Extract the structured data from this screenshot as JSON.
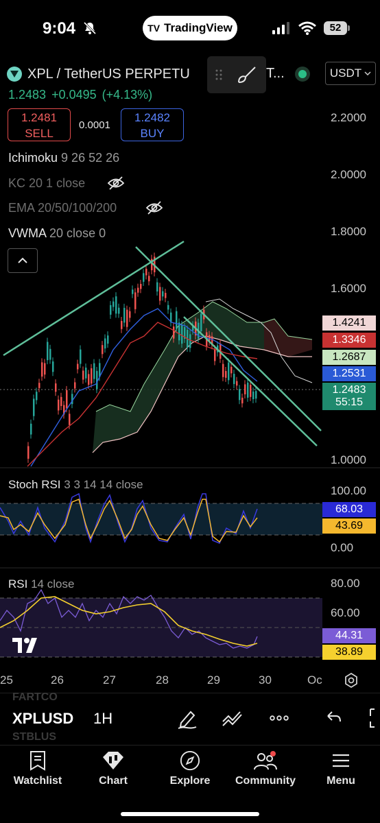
{
  "status_bar": {
    "time": "9:04",
    "battery": "52",
    "app_pill": "TradingView"
  },
  "header": {
    "symbol_title": "XPL / TetherUS PERPETU",
    "symbol_trail": "T...",
    "currency": "USDT",
    "last_price": "1.2483",
    "change": "+0.0495",
    "change_pct": "(+4.13%)"
  },
  "trade": {
    "sell_price": "1.2481",
    "sell_label": "SELL",
    "spread": "0.0001",
    "buy_price": "1.2482",
    "buy_label": "BUY"
  },
  "indicators": [
    {
      "name": "Ichimoku",
      "params": "9 26 52 26"
    },
    {
      "name": "KC",
      "params": "20 1 close"
    },
    {
      "name": "EMA",
      "params": "20/50/100/200"
    },
    {
      "name": "VWMA",
      "params": "20 close 0"
    }
  ],
  "price_axis": [
    "2.2000",
    "2.0000",
    "1.8000",
    "1.6000",
    "1.0000"
  ],
  "price_tags": [
    {
      "value": "1.4241",
      "color": "#f0d6d6",
      "text_color": "#000"
    },
    {
      "value": "1.3346",
      "color": "#c83232",
      "text_color": "#fff"
    },
    {
      "value": "1.2687",
      "color": "#c8e6c0",
      "text_color": "#000"
    },
    {
      "value": "1.2531",
      "color": "#2a5ad6",
      "text_color": "#fff"
    },
    {
      "value": "1.2483",
      "sub": "55:15",
      "color": "#1f8a6e",
      "text_color": "#fff"
    }
  ],
  "stoch_rsi": {
    "name": "Stoch RSI",
    "params": "3 3 14 14 close",
    "axis": [
      "100.00",
      "0.00"
    ],
    "tags": [
      {
        "value": "68.03",
        "color": "#2a2ad6",
        "text_color": "#fff"
      },
      {
        "value": "43.69",
        "color": "#f5b82e",
        "text_color": "#000"
      }
    ]
  },
  "rsi": {
    "name": "RSI",
    "params": "14 close",
    "axis": [
      "80.00",
      "60.00"
    ],
    "tags": [
      {
        "value": "44.31",
        "color": "#7b5cd6",
        "text_color": "#fff"
      },
      {
        "value": "38.89",
        "color": "#f5d02e",
        "text_color": "#000"
      }
    ]
  },
  "time_axis": [
    "25",
    "26",
    "27",
    "28",
    "29",
    "30",
    "Oc"
  ],
  "toolbar": {
    "symbol": "XPLUSD",
    "timeframe": "1H",
    "ghost_above": "FARTCO",
    "ghost_below": "STBLUS"
  },
  "nav": [
    {
      "label": "Watchlist",
      "icon": "watchlist-icon"
    },
    {
      "label": "Chart",
      "icon": "chart-icon"
    },
    {
      "label": "Explore",
      "icon": "compass-icon"
    },
    {
      "label": "Community",
      "icon": "community-icon"
    },
    {
      "label": "Menu",
      "icon": "menu-icon"
    }
  ],
  "colors": {
    "up": "#26a69a",
    "down": "#ef5350",
    "trendline": "#5fbf9a"
  }
}
